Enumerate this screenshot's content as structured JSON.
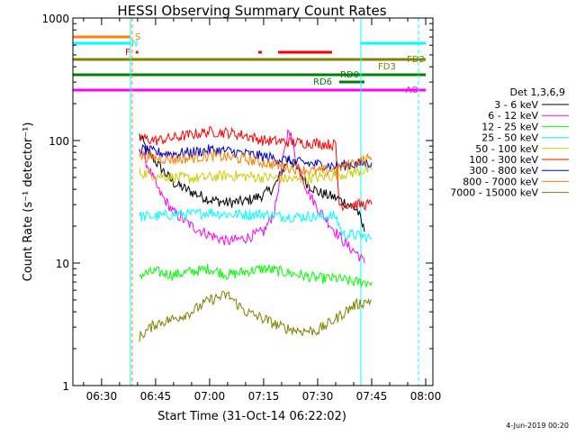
{
  "chart_data": {
    "type": "line",
    "title": "HESSI Observing Summary Count Rates",
    "xlabel": "Start Time (31-Oct-14 06:22:02)",
    "ylabel": "Count Rate (s⁻¹ detector⁻¹)",
    "yscale": "log",
    "ylim": [
      1,
      1000
    ],
    "xlim": [
      "06:22:02",
      "08:02:00"
    ],
    "x_ticks": [
      "06:30",
      "06:45",
      "07:00",
      "07:15",
      "07:30",
      "07:45",
      "08:00"
    ],
    "y_ticks": [
      "1",
      "10",
      "100",
      "1000"
    ],
    "legend_title": "Det 1,3,6,9",
    "legend_position": "right",
    "date_stamp": "4-Jun-2019 00:20",
    "series": [
      {
        "name": "3 - 6 keV",
        "color": "#000000",
        "points": [
          [
            "06:40:30",
            110
          ],
          [
            "06:43",
            80
          ],
          [
            "06:46",
            62
          ],
          [
            "06:50",
            45
          ],
          [
            "06:55",
            38
          ],
          [
            "07:00",
            33
          ],
          [
            "07:05",
            31
          ],
          [
            "07:10",
            32
          ],
          [
            "07:15",
            36
          ],
          [
            "07:18",
            42
          ],
          [
            "07:20",
            55
          ],
          [
            "07:22",
            72
          ],
          [
            "07:24",
            60
          ],
          [
            "07:27",
            45
          ],
          [
            "07:30",
            38
          ],
          [
            "07:35",
            34
          ],
          [
            "07:38",
            31
          ],
          [
            "07:41",
            27
          ],
          [
            "07:43",
            18
          ]
        ]
      },
      {
        "name": "6 - 12 keV",
        "color": "#ff00ff",
        "points": [
          [
            "06:40:30",
            90
          ],
          [
            "06:43",
            60
          ],
          [
            "06:46",
            38
          ],
          [
            "06:50",
            26
          ],
          [
            "06:55",
            20
          ],
          [
            "07:00",
            17
          ],
          [
            "07:05",
            15
          ],
          [
            "07:10",
            16
          ],
          [
            "07:15",
            18
          ],
          [
            "07:18",
            26
          ],
          [
            "07:20",
            60
          ],
          [
            "07:22",
            130
          ],
          [
            "07:24",
            70
          ],
          [
            "07:27",
            40
          ],
          [
            "07:30",
            28
          ],
          [
            "07:35",
            18
          ],
          [
            "07:38",
            14
          ],
          [
            "07:41",
            12
          ],
          [
            "07:43",
            10
          ]
        ]
      },
      {
        "name": "12 - 25 keV",
        "color": "#00ff00",
        "points": [
          [
            "06:40:30",
            8
          ],
          [
            "06:45",
            8.5
          ],
          [
            "06:50",
            8
          ],
          [
            "06:55",
            8.5
          ],
          [
            "07:00",
            9
          ],
          [
            "07:05",
            8
          ],
          [
            "07:10",
            8.5
          ],
          [
            "07:15",
            9
          ],
          [
            "07:20",
            8.5
          ],
          [
            "07:25",
            8
          ],
          [
            "07:30",
            7.5
          ],
          [
            "07:35",
            7.5
          ],
          [
            "07:40",
            7
          ],
          [
            "07:45",
            7
          ]
        ]
      },
      {
        "name": "25 - 50 keV",
        "color": "#00ffff",
        "points": [
          [
            "06:40:30",
            24
          ],
          [
            "06:45",
            24
          ],
          [
            "06:50",
            25
          ],
          [
            "06:55",
            25
          ],
          [
            "07:00",
            26
          ],
          [
            "07:05",
            25
          ],
          [
            "07:10",
            25
          ],
          [
            "07:15",
            25
          ],
          [
            "07:20",
            24
          ],
          [
            "07:25",
            24
          ],
          [
            "07:30",
            24
          ],
          [
            "07:35",
            24
          ],
          [
            "07:37",
            17
          ],
          [
            "07:40",
            17
          ],
          [
            "07:45",
            16
          ]
        ]
      },
      {
        "name": "50 - 100 keV",
        "color": "#cccc00",
        "points": [
          [
            "06:40:30",
            55
          ],
          [
            "06:45",
            52
          ],
          [
            "06:50",
            50
          ],
          [
            "06:55",
            49
          ],
          [
            "07:00",
            50
          ],
          [
            "07:05",
            52
          ],
          [
            "07:10",
            51
          ],
          [
            "07:15",
            50
          ],
          [
            "07:20",
            49
          ],
          [
            "07:25",
            48
          ],
          [
            "07:30",
            50
          ],
          [
            "07:35",
            52
          ],
          [
            "07:40",
            55
          ],
          [
            "07:45",
            58
          ]
        ]
      },
      {
        "name": "100 - 300 keV",
        "color": "#ff0000",
        "points": [
          [
            "06:40:30",
            105
          ],
          [
            "06:45",
            100
          ],
          [
            "06:50",
            105
          ],
          [
            "06:55",
            112
          ],
          [
            "07:00",
            118
          ],
          [
            "07:05",
            116
          ],
          [
            "07:10",
            110
          ],
          [
            "07:15",
            100
          ],
          [
            "07:20",
            98
          ],
          [
            "07:25",
            96
          ],
          [
            "07:30",
            95
          ],
          [
            "07:35",
            92
          ],
          [
            "07:36",
            30
          ],
          [
            "07:40",
            30
          ],
          [
            "07:45",
            30
          ]
        ]
      },
      {
        "name": "300 - 800 keV",
        "color": "#0000cc",
        "points": [
          [
            "06:40:30",
            85
          ],
          [
            "06:45",
            80
          ],
          [
            "06:50",
            78
          ],
          [
            "06:55",
            80
          ],
          [
            "07:00",
            84
          ],
          [
            "07:05",
            82
          ],
          [
            "07:10",
            78
          ],
          [
            "07:15",
            74
          ],
          [
            "07:20",
            70
          ],
          [
            "07:25",
            66
          ],
          [
            "07:30",
            64
          ],
          [
            "07:35",
            62
          ],
          [
            "07:40",
            64
          ],
          [
            "07:45",
            66
          ]
        ]
      },
      {
        "name": "800 - 7000 keV",
        "color": "#ff8000",
        "points": [
          [
            "06:40:30",
            75
          ],
          [
            "06:45",
            72
          ],
          [
            "06:50",
            70
          ],
          [
            "06:55",
            72
          ],
          [
            "07:00",
            75
          ],
          [
            "07:05",
            73
          ],
          [
            "07:10",
            70
          ],
          [
            "07:15",
            66
          ],
          [
            "07:20",
            62
          ],
          [
            "07:25",
            58
          ],
          [
            "07:30",
            56
          ],
          [
            "07:35",
            58
          ],
          [
            "07:40",
            66
          ],
          [
            "07:45",
            72
          ]
        ]
      },
      {
        "name": "7000 - 15000 keV",
        "color": "#808000",
        "points": [
          [
            "06:40:30",
            2.5
          ],
          [
            "06:45",
            3.2
          ],
          [
            "06:50",
            3.5
          ],
          [
            "06:55",
            4
          ],
          [
            "07:00",
            5
          ],
          [
            "07:05",
            5.5
          ],
          [
            "07:10",
            4
          ],
          [
            "07:15",
            3.5
          ],
          [
            "07:20",
            3
          ],
          [
            "07:25",
            2.8
          ],
          [
            "07:30",
            2.8
          ],
          [
            "07:35",
            3.5
          ],
          [
            "07:40",
            4.5
          ],
          [
            "07:45",
            5
          ]
        ]
      }
    ],
    "flag_bars": [
      {
        "label": "S",
        "color": "#ff8000",
        "segments": [
          [
            "06:22:02",
            "06:38:00"
          ]
        ]
      },
      {
        "label": "N",
        "color": "#00ffff",
        "segments": [
          [
            "06:22:02",
            "06:38:00"
          ],
          [
            "07:42:00",
            "08:00:00"
          ]
        ]
      },
      {
        "label": "F",
        "color": "#ff0000",
        "segments": [
          [
            "06:39:30",
            "06:40:10"
          ],
          [
            "07:13:30",
            "07:14:30"
          ],
          [
            "07:19:00",
            "07:34:00"
          ]
        ]
      },
      {
        "label": "FD2",
        "color": "#808000",
        "segments": [
          [
            "06:22:02",
            "08:00:00"
          ]
        ]
      },
      {
        "label": "FD3",
        "color": "#808000",
        "segments": []
      },
      {
        "label": "RD0",
        "color": "#008000",
        "segments": [
          [
            "06:22:02",
            "08:00:00"
          ]
        ]
      },
      {
        "label": "RD6",
        "color": "#008000",
        "segments": [
          [
            "07:36:00",
            "07:43:00"
          ]
        ]
      },
      {
        "label": "AO",
        "color": "#ff00ff",
        "segments": [
          [
            "06:22:02",
            "08:00:00"
          ]
        ]
      }
    ],
    "vertical_markers": [
      {
        "time": "06:38:00",
        "color": "#00ffff",
        "style": "solid"
      },
      {
        "time": "06:38:30",
        "color": "#ff8000",
        "style": "dashed"
      },
      {
        "time": "07:42:00",
        "color": "#00ffff",
        "style": "solid"
      },
      {
        "time": "07:58:00",
        "color": "#00ffff",
        "style": "dashed"
      }
    ]
  }
}
